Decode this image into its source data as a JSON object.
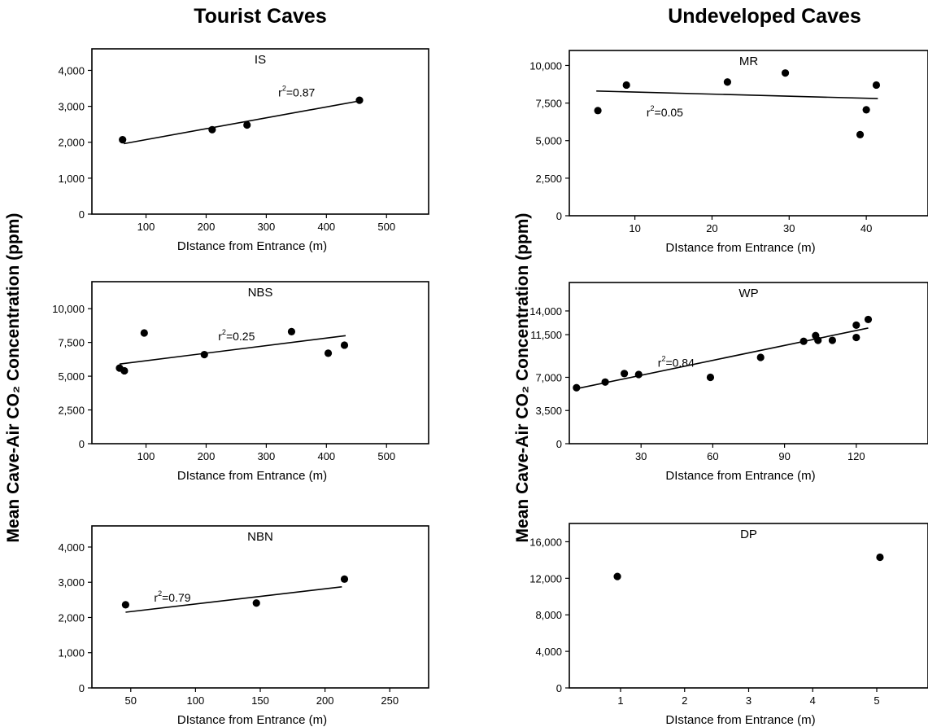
{
  "column_titles": {
    "left": "Tourist Caves",
    "right": "Undeveloped Caves"
  },
  "shared_ylabel": "Mean Cave-Air CO₂ Concentration (ppm)",
  "chart_data": [
    {
      "type": "scatter",
      "title": "IS",
      "xlabel": "DIstance from Entrance (m)",
      "ylabel": "Mean Cave-Air CO₂ Concentration (ppm)",
      "xlim": [
        10,
        570
      ],
      "ylim": [
        0,
        4600
      ],
      "xticks": [
        100,
        200,
        300,
        400,
        500
      ],
      "yticks": [
        0,
        1000,
        2000,
        3000,
        4000
      ],
      "yticklabels": [
        "0",
        "1,000",
        "2,000",
        "3,000",
        "4,000"
      ],
      "points": [
        [
          61,
          2070
        ],
        [
          210,
          2350
        ],
        [
          268,
          2480
        ],
        [
          455,
          3170
        ]
      ],
      "fit": [
        [
          63,
          1960
        ],
        [
          455,
          3150
        ]
      ],
      "annotation": {
        "r_label": "r",
        "exponent": "2",
        "value": "=0.87",
        "x": 320,
        "y": 3280
      }
    },
    {
      "type": "scatter",
      "title": "NBS",
      "xlabel": "DIstance from Entrance (m)",
      "ylabel": "Mean Cave-Air CO₂ Concentration (ppm)",
      "xlim": [
        10,
        570
      ],
      "ylim": [
        0,
        12000
      ],
      "xticks": [
        100,
        200,
        300,
        400,
        500
      ],
      "yticks": [
        0,
        2500,
        5000,
        7500,
        10000
      ],
      "yticklabels": [
        "0",
        "2,500",
        "5,000",
        "7,500",
        "10,000"
      ],
      "points": [
        [
          56,
          5600
        ],
        [
          64,
          5400
        ],
        [
          97,
          8200
        ],
        [
          197,
          6600
        ],
        [
          342,
          8300
        ],
        [
          403,
          6700
        ],
        [
          430,
          7300
        ]
      ],
      "fit": [
        [
          56,
          5900
        ],
        [
          432,
          8000
        ]
      ],
      "annotation": {
        "r_label": "r",
        "exponent": "2",
        "value": "=0.25",
        "x": 220,
        "y": 7650
      }
    },
    {
      "type": "scatter",
      "title": "NBN",
      "xlabel": "DIstance from Entrance (m)",
      "ylabel": "Mean Cave-Air CO₂ Concentration (ppm)",
      "xlim": [
        20,
        280
      ],
      "ylim": [
        0,
        4600
      ],
      "xticks": [
        50,
        100,
        150,
        200,
        250
      ],
      "yticks": [
        0,
        1000,
        2000,
        3000,
        4000
      ],
      "yticklabels": [
        "0",
        "1,000",
        "2,000",
        "3,000",
        "4,000"
      ],
      "points": [
        [
          46,
          2360
        ],
        [
          147,
          2410
        ],
        [
          215,
          3090
        ]
      ],
      "fit": [
        [
          46,
          2150
        ],
        [
          213,
          2870
        ]
      ],
      "annotation": {
        "r_label": "r",
        "exponent": "2",
        "value": "=0.79",
        "x": 68,
        "y": 2450
      }
    },
    {
      "type": "scatter",
      "title": "MR",
      "xlabel": "DIstance from Entrance (m)",
      "ylabel": "Mean Cave-Air CO₂ Concentration (ppm)",
      "xlim": [
        1.5,
        48
      ],
      "ylim": [
        0,
        11000
      ],
      "xticks": [
        10,
        20,
        30,
        40
      ],
      "yticks": [
        0,
        2500,
        5000,
        7500,
        10000
      ],
      "yticklabels": [
        "0",
        "2,500",
        "5,000",
        "7,500",
        "10,000"
      ],
      "points": [
        [
          5.2,
          7000
        ],
        [
          8.9,
          8700
        ],
        [
          22,
          8900
        ],
        [
          29.5,
          9500
        ],
        [
          39.2,
          5400
        ],
        [
          40,
          7050
        ],
        [
          41.3,
          8700
        ]
      ],
      "fit": [
        [
          5,
          8300
        ],
        [
          41.5,
          7800
        ]
      ],
      "annotation": {
        "r_label": "r",
        "exponent": "2",
        "value": "=0.05",
        "x": 11.5,
        "y": 6600
      }
    },
    {
      "type": "scatter",
      "title": "WP",
      "xlabel": "DIstance from Entrance (m)",
      "ylabel": "Mean Cave-Air CO₂ Concentration (ppm)",
      "xlim": [
        0,
        150
      ],
      "ylim": [
        0,
        17000
      ],
      "xticks": [
        30,
        60,
        90,
        120
      ],
      "yticks": [
        0,
        3500,
        7000,
        11500,
        14000
      ],
      "yticklabels": [
        "0",
        "3,500",
        "7,000",
        "11,500",
        "14,000"
      ],
      "points": [
        [
          3,
          5900
        ],
        [
          15,
          6500
        ],
        [
          23,
          7400
        ],
        [
          29,
          7300
        ],
        [
          59,
          7000
        ],
        [
          80,
          9100
        ],
        [
          98,
          10800
        ],
        [
          103,
          11400
        ],
        [
          104,
          10900
        ],
        [
          110,
          10900
        ],
        [
          120,
          11200
        ],
        [
          120,
          12500
        ],
        [
          125,
          13100
        ]
      ],
      "fit": [
        [
          3,
          5800
        ],
        [
          125,
          12200
        ]
      ],
      "annotation": {
        "r_label": "r",
        "exponent": "2",
        "value": "=0.84",
        "x": 37,
        "y": 8100
      }
    },
    {
      "type": "scatter",
      "title": "DP",
      "xlabel": "DIstance from Entrance (m)",
      "ylabel": "Mean Cave-Air CO₂ Concentration (ppm)",
      "xlim": [
        0.2,
        5.8
      ],
      "ylim": [
        0,
        18000
      ],
      "xticks": [
        1,
        2,
        3,
        4,
        5
      ],
      "yticks": [
        0,
        4000,
        8000,
        12000,
        16000
      ],
      "yticklabels": [
        "0",
        "4,000",
        "8,000",
        "12,000",
        "16,000"
      ],
      "points": [
        [
          0.95,
          12200
        ],
        [
          5.05,
          14300
        ]
      ]
    }
  ]
}
